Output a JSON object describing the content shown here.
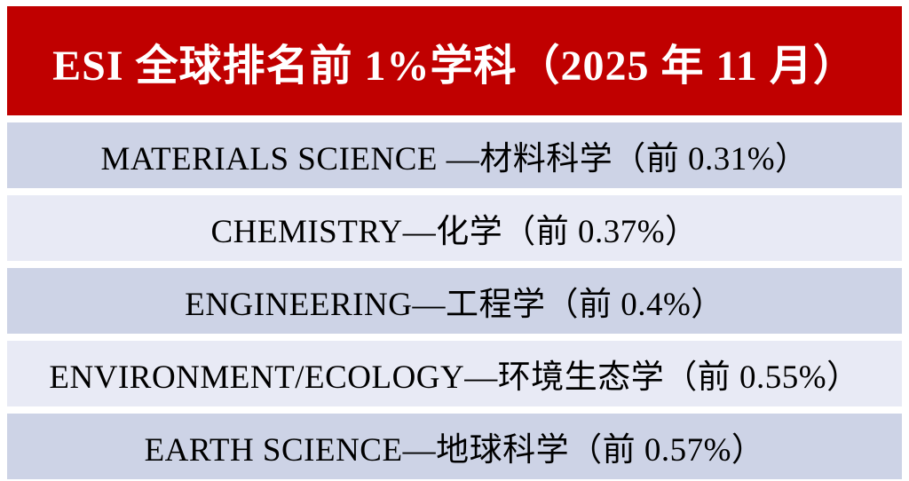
{
  "slide": {
    "header": {
      "title": "ESI 全球排名前 1%学科（2025 年 11 月）"
    },
    "rows": [
      {
        "label": "MATERIALS SCIENCE —材料科学（前 0.31%）"
      },
      {
        "label": "CHEMISTRY—化学（前 0.37%）"
      },
      {
        "label": "ENGINEERING—工程学（前 0.4%）"
      },
      {
        "label": "ENVIRONMENT/ECOLOGY—环境生态学（前 0.55%）"
      },
      {
        "label": "EARTH SCIENCE—地球科学（前 0.57%）"
      }
    ],
    "colors": {
      "page_bg": "#FFFFFF",
      "header_bg": "#C00000",
      "header_text": "#FFFFFF",
      "row_dark": "#CDD3E6",
      "row_light": "#E8EAF5",
      "row_text": "#000000"
    }
  }
}
